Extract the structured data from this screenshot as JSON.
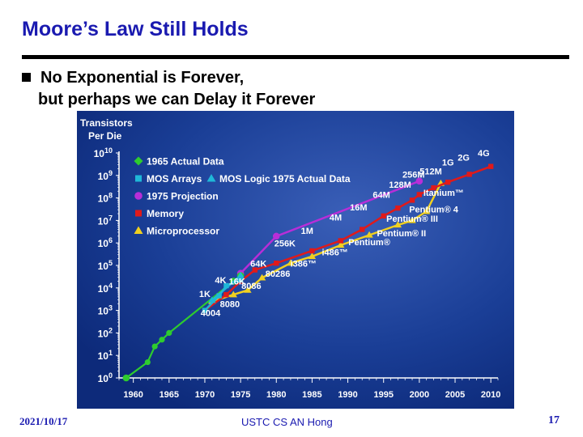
{
  "slide": {
    "title": "Moore’s Law Still Holds",
    "bullet": "No Exponential is Forever,",
    "bullet_cont": "but perhaps we can Delay it Forever"
  },
  "footer": {
    "date": "2021/10/17",
    "center": "USTC CS AN Hong",
    "page": "17"
  },
  "chart_data": {
    "type": "line",
    "title": "Transistors Per Die",
    "y_scale": "log10",
    "ylim_exp": [
      0,
      10
    ],
    "y_ticks": [
      "10^0",
      "10^1",
      "10^2",
      "10^3",
      "10^4",
      "10^5",
      "10^6",
      "10^7",
      "10^8",
      "10^9",
      "10^10"
    ],
    "xlim": [
      1958,
      2011
    ],
    "x_ticks": [
      1960,
      1965,
      1970,
      1975,
      1980,
      1985,
      1990,
      1995,
      2000,
      2005,
      2010
    ],
    "legend_placement": "top-left",
    "colors": {
      "background": "#0d2a7a",
      "background_glow": "#3a5fb8",
      "actual_1965": "#2ecc2e",
      "mos_arrays": "#1fb8d8",
      "mos_logic": "#1fb8d8",
      "projection": "#b82ed8",
      "memory": "#e01a1a",
      "microprocessor": "#f0d020"
    },
    "legend": [
      {
        "key": "actual_1965",
        "label": "1965 Actual Data",
        "marker": "diamond"
      },
      {
        "key": "mos_arrays",
        "label": "MOS Arrays",
        "marker": "square",
        "second_key": "mos_logic",
        "second_label": "MOS Logic 1975 Actual Data",
        "second_marker": "triangle"
      },
      {
        "key": "projection",
        "label": "1975 Projection",
        "marker": "circle"
      },
      {
        "key": "memory",
        "label": "Memory",
        "marker": "square"
      },
      {
        "key": "microprocessor",
        "label": "Microprocessor",
        "marker": "triangle"
      }
    ],
    "series": [
      {
        "key": "actual_1965",
        "points": [
          [
            1959,
            0
          ],
          [
            1962,
            0.7
          ],
          [
            1963,
            1.4
          ],
          [
            1964,
            1.7
          ],
          [
            1965,
            2
          ],
          [
            1974,
            4.3
          ],
          [
            1975,
            4.55
          ]
        ]
      },
      {
        "key": "mos_arrays",
        "points": [
          [
            1970,
            3
          ],
          [
            1972,
            3.65
          ],
          [
            1973,
            4.1
          ],
          [
            1975,
            4.35
          ]
        ]
      },
      {
        "key": "mos_logic",
        "points": [
          [
            1971,
            3.45
          ],
          [
            1975,
            4.55
          ]
        ]
      },
      {
        "key": "projection",
        "points": [
          [
            1975,
            4.65
          ],
          [
            1980,
            6.3
          ],
          [
            2000,
            8.75
          ]
        ]
      },
      {
        "key": "memory",
        "points": [
          [
            1970,
            3
          ],
          [
            1973,
            3.7
          ],
          [
            1975,
            4.3
          ],
          [
            1977,
            4.8
          ],
          [
            1980,
            5.1
          ],
          [
            1985,
            5.65
          ],
          [
            1989,
            6.1
          ],
          [
            1992,
            6.6
          ],
          [
            1995,
            7.2
          ],
          [
            1997,
            7.55
          ],
          [
            1999,
            7.9
          ],
          [
            2000,
            8.15
          ],
          [
            2002,
            8.45
          ],
          [
            2004,
            8.7
          ],
          [
            2007,
            9.05
          ],
          [
            2010,
            9.4
          ]
        ]
      },
      {
        "key": "microprocessor",
        "points": [
          [
            1971,
            3.4
          ],
          [
            1974,
            3.7
          ],
          [
            1976,
            3.9
          ],
          [
            1978,
            4.45
          ],
          [
            1982,
            5.1
          ],
          [
            1985,
            5.4
          ],
          [
            1989,
            5.9
          ],
          [
            1993,
            6.35
          ],
          [
            1997,
            6.8
          ],
          [
            1999,
            7
          ],
          [
            2001,
            7.4
          ],
          [
            2003,
            8.65
          ]
        ]
      }
    ],
    "labels": [
      {
        "text": "1K",
        "x": 1970,
        "y": 3.6,
        "color": "#ffffff"
      },
      {
        "text": "4K",
        "x": 1972.2,
        "y": 4.2,
        "color": "#ffffff"
      },
      {
        "text": "16K",
        "x": 1974.5,
        "y": 4.15,
        "color": "#ffffff"
      },
      {
        "text": "64K",
        "x": 1977.5,
        "y": 4.95,
        "color": "#ffffff"
      },
      {
        "text": "256K",
        "x": 1981.2,
        "y": 5.85,
        "color": "#ffffff"
      },
      {
        "text": "1M",
        "x": 1984.3,
        "y": 6.4,
        "color": "#ffffff"
      },
      {
        "text": "4M",
        "x": 1988.3,
        "y": 7.0,
        "color": "#ffffff"
      },
      {
        "text": "16M",
        "x": 1991.5,
        "y": 7.45,
        "color": "#ffffff"
      },
      {
        "text": "64M",
        "x": 1994.7,
        "y": 8.0,
        "color": "#ffffff"
      },
      {
        "text": "128M",
        "x": 1997.3,
        "y": 8.45,
        "color": "#ffffff"
      },
      {
        "text": "256M",
        "x": 1999.2,
        "y": 8.9,
        "color": "#ffffff"
      },
      {
        "text": "512M",
        "x": 2001.6,
        "y": 9.05,
        "color": "#ffffff"
      },
      {
        "text": "1G",
        "x": 2004.0,
        "y": 9.45,
        "color": "#ffffff"
      },
      {
        "text": "2G",
        "x": 2006.2,
        "y": 9.65,
        "color": "#ffffff"
      },
      {
        "text": "4G",
        "x": 2009.0,
        "y": 9.85,
        "color": "#ffffff"
      },
      {
        "text": "4004",
        "x": 1970.8,
        "y": 2.75,
        "color": "#ffffff"
      },
      {
        "text": "8080",
        "x": 1973.5,
        "y": 3.15,
        "color": "#ffffff"
      },
      {
        "text": "8086",
        "x": 1976.5,
        "y": 3.95,
        "color": "#ffffff"
      },
      {
        "text": "80286",
        "x": 1980.2,
        "y": 4.5,
        "color": "#ffffff"
      },
      {
        "text": "i386™",
        "x": 1983.8,
        "y": 4.95,
        "color": "#ffffff"
      },
      {
        "text": "i486™",
        "x": 1988.2,
        "y": 5.45,
        "color": "#ffffff"
      },
      {
        "text": "Pentium®",
        "x": 1993.0,
        "y": 5.9,
        "color": "#ffffff"
      },
      {
        "text": "Pentium® II",
        "x": 1997.5,
        "y": 6.3,
        "color": "#ffffff"
      },
      {
        "text": "Pentium® III",
        "x": 1999.0,
        "y": 6.95,
        "color": "#ffffff"
      },
      {
        "text": "Pentium® 4",
        "x": 2002.0,
        "y": 7.35,
        "color": "#ffffff"
      },
      {
        "text": "Itanium™",
        "x": 2003.4,
        "y": 8.1,
        "color": "#ffffff"
      }
    ]
  }
}
